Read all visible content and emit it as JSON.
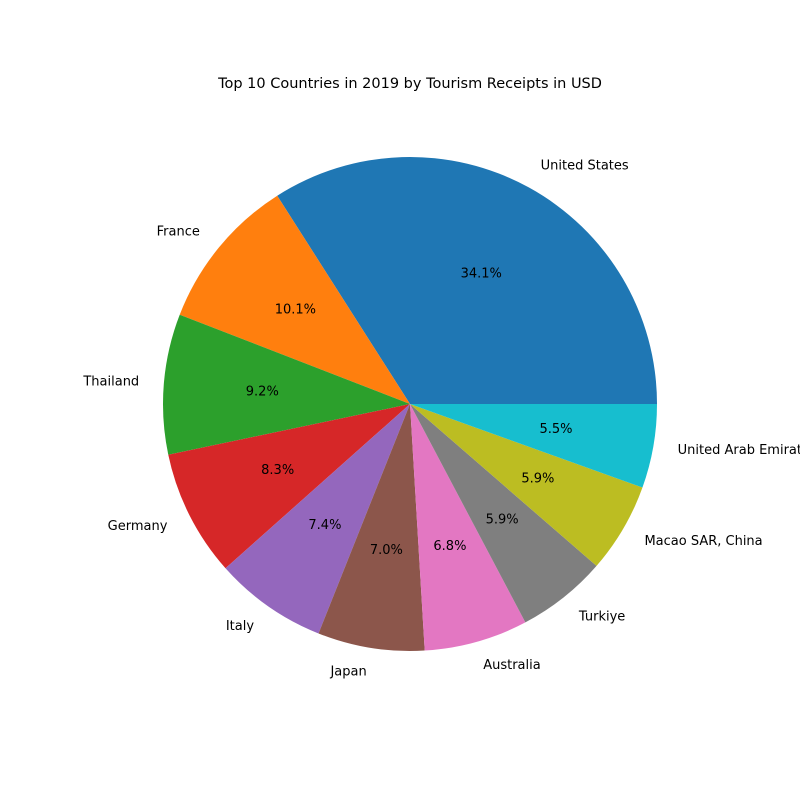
{
  "chart_data": {
    "type": "pie",
    "title": "Top 10 Countries in 2019 by Tourism Receipts in USD",
    "categories": [
      "United States",
      "France",
      "Thailand",
      "Germany",
      "Italy",
      "Japan",
      "Australia",
      "Turkiye",
      "Macao SAR, China",
      "United Arab Emirates"
    ],
    "values": [
      34.1,
      10.1,
      9.2,
      8.3,
      7.4,
      7.0,
      6.8,
      5.9,
      5.9,
      5.5
    ],
    "value_labels": [
      "34.1%",
      "10.1%",
      "9.2%",
      "8.3%",
      "7.4%",
      "7.0%",
      "6.8%",
      "5.9%",
      "5.9%",
      "5.5%"
    ],
    "colors": [
      "#1f77b4",
      "#ff7f0e",
      "#2ca02c",
      "#d62728",
      "#9467bd",
      "#8c564b",
      "#e377c2",
      "#7f7f7f",
      "#bcbd22",
      "#17becf"
    ],
    "start_angle_deg": 0,
    "direction": "counterclockwise",
    "legend": "none"
  }
}
